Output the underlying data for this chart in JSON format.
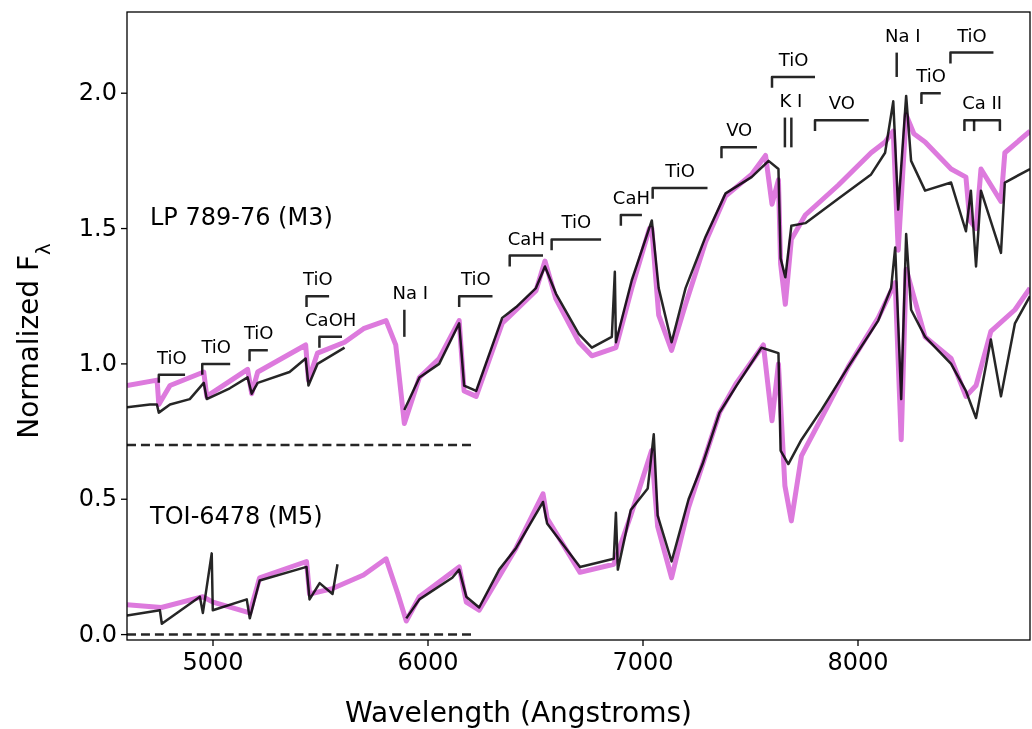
{
  "chart_data": {
    "type": "line",
    "xlabel": "Wavelength (Angstroms)",
    "ylabel": "Normalized F$_{λ}$",
    "xlim": [
      4600,
      8800
    ],
    "ylim": [
      -0.02,
      2.3
    ],
    "xticks": [
      5000,
      6000,
      7000,
      8000
    ],
    "yticks": [
      {
        "value": 0,
        "label": "0.0"
      },
      {
        "value": 0.5,
        "label": "0.5"
      },
      {
        "value": 1,
        "label": "1.0"
      },
      {
        "value": 1.5,
        "label": "1.5"
      },
      {
        "value": 2,
        "label": "2.0"
      }
    ],
    "grid": false,
    "series": [
      {
        "color": "#dd7add",
        "x": [
          4600,
          4740,
          4748,
          4800,
          4957,
          4971,
          5161,
          5180,
          5208,
          5431,
          5444,
          5486,
          5612,
          5700,
          5805,
          5850,
          5890,
          5960,
          6052,
          6145,
          6168,
          6224,
          6345,
          6502,
          6544,
          6595,
          6702,
          6762,
          6874,
          6948,
          7030,
          7041,
          7073,
          7133,
          7198,
          7291,
          7384,
          7505,
          7570,
          7600,
          7630,
          7640,
          7662,
          7690,
          7755,
          7908,
          8061,
          8126,
          8164,
          8187,
          8224,
          8260,
          8312,
          8433,
          8502,
          8520,
          8549,
          8572,
          8665,
          8683,
          8800
        ],
        "values": [
          0.92,
          0.94,
          0.85,
          0.92,
          0.97,
          0.88,
          0.98,
          0.89,
          0.97,
          1.07,
          0.94,
          1.04,
          1.08,
          1.13,
          1.16,
          1.07,
          0.78,
          0.95,
          1.02,
          1.16,
          0.9,
          0.88,
          1.15,
          1.27,
          1.38,
          1.24,
          1.08,
          1.03,
          1.06,
          1.28,
          1.5,
          1.5,
          1.18,
          1.05,
          1.22,
          1.45,
          1.62,
          1.7,
          1.77,
          1.59,
          1.68,
          1.37,
          1.22,
          1.46,
          1.55,
          1.66,
          1.78,
          1.82,
          1.86,
          1.42,
          1.92,
          1.85,
          1.82,
          1.72,
          1.69,
          1.53,
          1.5,
          1.72,
          1.6,
          1.78,
          1.86
        ]
      },
      {
        "color": "#000000",
        "x": [
          4600,
          4707,
          4739,
          4748,
          4800,
          4892,
          4957,
          4971,
          5078,
          5161,
          5180,
          5208,
          5356,
          5431,
          5444,
          5486,
          5612,
          5700,
          5890,
          5960,
          6052,
          6145,
          6168,
          6224,
          6345,
          6410,
          6502,
          6544,
          6595,
          6702,
          6762,
          6855,
          6869,
          6874,
          6948,
          7041,
          7073,
          7133,
          7198,
          7291,
          7384,
          7505,
          7584,
          7630,
          7640,
          7662,
          7690,
          7755,
          7908,
          8061,
          8126,
          8164,
          8187,
          8224,
          8247,
          8312,
          8433,
          8502,
          8525,
          8549,
          8572,
          8665,
          8683,
          8800
        ],
        "values": [
          0.84,
          0.85,
          0.85,
          0.82,
          0.85,
          0.87,
          0.93,
          0.87,
          0.91,
          0.95,
          0.89,
          0.93,
          0.97,
          1.02,
          0.92,
          1.0,
          1.06,
          null,
          0.83,
          0.95,
          1.0,
          1.15,
          0.92,
          0.9,
          1.17,
          1.21,
          1.28,
          1.36,
          1.26,
          1.11,
          1.06,
          1.1,
          1.34,
          1.08,
          1.31,
          1.53,
          1.28,
          1.08,
          1.28,
          1.47,
          1.63,
          1.69,
          1.75,
          1.72,
          1.39,
          1.32,
          1.51,
          1.52,
          1.61,
          1.7,
          1.78,
          1.97,
          1.57,
          1.99,
          1.75,
          1.64,
          1.67,
          1.49,
          1.64,
          1.36,
          1.64,
          1.41,
          1.67,
          1.72
        ]
      },
      {
        "color": "#dd7add",
        "x": [
          4600,
          4760,
          4953,
          5000,
          5171,
          5217,
          5435,
          5449,
          5556,
          5700,
          5805,
          5860,
          5899,
          5960,
          6145,
          6178,
          6238,
          6410,
          6535,
          6554,
          6707,
          6864,
          6943,
          7040,
          7068,
          7133,
          7212,
          7356,
          7435,
          7560,
          7600,
          7630,
          7660,
          7690,
          7737,
          7830,
          7955,
          8094,
          8173,
          8201,
          8224,
          8312,
          8433,
          8502,
          8549,
          8618,
          8730,
          8800
        ],
        "values": [
          0.11,
          0.1,
          0.14,
          0.12,
          0.08,
          0.21,
          0.27,
          0.15,
          0.17,
          0.22,
          0.28,
          0.15,
          0.05,
          0.14,
          0.25,
          0.12,
          0.09,
          0.32,
          0.52,
          0.43,
          0.23,
          0.26,
          0.44,
          0.68,
          0.4,
          0.21,
          0.47,
          0.82,
          0.93,
          1.07,
          0.79,
          1.0,
          0.55,
          0.42,
          0.66,
          0.8,
          0.99,
          1.17,
          1.3,
          0.72,
          1.35,
          1.1,
          1.02,
          0.88,
          0.92,
          1.12,
          1.2,
          1.28
        ]
      },
      {
        "color": "#000000",
        "x": [
          4600,
          4753,
          4762,
          4939,
          4953,
          4994,
          4999,
          5157,
          5171,
          5217,
          5435,
          5449,
          5496,
          5556,
          5579,
          5700,
          5899,
          5960,
          6113,
          6145,
          6178,
          6238,
          6331,
          6410,
          6535,
          6554,
          6707,
          6864,
          6874,
          6883,
          6943,
          7022,
          7050,
          7068,
          7133,
          7212,
          7277,
          7356,
          7435,
          7551,
          7630,
          7640,
          7676,
          7737,
          7830,
          7955,
          8094,
          8154,
          8173,
          8201,
          8224,
          8247,
          8312,
          8433,
          8502,
          8549,
          8618,
          8665,
          8730,
          8800
        ],
        "values": [
          0.07,
          0.09,
          0.04,
          0.14,
          0.08,
          0.3,
          0.09,
          0.13,
          0.06,
          0.2,
          0.25,
          0.13,
          0.19,
          0.15,
          0.26,
          null,
          0.06,
          0.13,
          0.21,
          0.24,
          0.14,
          0.1,
          0.24,
          0.32,
          0.49,
          0.41,
          0.25,
          0.28,
          0.45,
          0.24,
          0.46,
          0.54,
          0.74,
          0.44,
          0.27,
          0.5,
          0.63,
          0.82,
          0.92,
          1.06,
          1.04,
          0.68,
          0.63,
          0.72,
          0.83,
          0.99,
          1.16,
          1.28,
          1.43,
          0.87,
          1.48,
          1.2,
          1.1,
          1.0,
          0.9,
          0.8,
          1.09,
          0.88,
          1.15,
          1.25
        ]
      },
      {
        "color": "#000000",
        "line_style": "dashed",
        "x": [
          4600,
          6200
        ],
        "values": [
          0.7,
          0.7
        ]
      },
      {
        "color": "#000000",
        "line_style": "dashed",
        "x": [
          4600,
          6200
        ],
        "values": [
          0,
          0
        ]
      },
      {
        "color": "#000000",
        "x": [
          4748,
          4748,
          4870
        ],
        "values": [
          0.93,
          0.96,
          0.96
        ]
      },
      {
        "color": "#000000",
        "x": [
          4950,
          4950,
          5080
        ],
        "values": [
          0.96,
          1.0,
          1.0
        ]
      },
      {
        "color": "#000000",
        "x": [
          5170,
          5170,
          5255
        ],
        "values": [
          1.01,
          1.05,
          1.05
        ]
      },
      {
        "color": "#000000",
        "x": [
          5435,
          5435,
          5540
        ],
        "values": [
          1.21,
          1.25,
          1.25
        ]
      },
      {
        "color": "#000000",
        "x": [
          5495,
          5495,
          5600
        ],
        "values": [
          1.06,
          1.1,
          1.1
        ]
      },
      {
        "color": "#000000",
        "x": [
          5890,
          5890
        ],
        "values": [
          1.1,
          1.2
        ]
      },
      {
        "color": "#000000",
        "x": [
          6145,
          6145,
          6300
        ],
        "values": [
          1.21,
          1.25,
          1.25
        ]
      },
      {
        "color": "#000000",
        "x": [
          6380,
          6380,
          6535
        ],
        "values": [
          1.36,
          1.4,
          1.4
        ]
      },
      {
        "color": "#000000",
        "x": [
          6575,
          6575,
          6805
        ],
        "values": [
          1.42,
          1.46,
          1.46
        ]
      },
      {
        "color": "#000000",
        "x": [
          6897,
          6897,
          6995
        ],
        "values": [
          1.51,
          1.55,
          1.55
        ]
      },
      {
        "color": "#000000",
        "x": [
          7045,
          7045,
          7300
        ],
        "values": [
          1.61,
          1.65,
          1.65
        ]
      },
      {
        "color": "#000000",
        "x": [
          7365,
          7365,
          7530
        ],
        "values": [
          1.76,
          1.8,
          1.8
        ]
      },
      {
        "color": "#000000",
        "x": [
          7660,
          7660
        ],
        "values": [
          1.8,
          1.91
        ]
      },
      {
        "color": "#000000",
        "x": [
          7600,
          7600,
          7800
        ],
        "values": [
          2.02,
          2.06,
          2.06
        ]
      },
      {
        "color": "#000000",
        "x": [
          7800,
          7800,
          8050
        ],
        "values": [
          1.86,
          1.9,
          1.9
        ]
      },
      {
        "color": "#000000",
        "x": [
          8180,
          8180
        ],
        "values": [
          2.06,
          2.15
        ]
      },
      {
        "color": "#000000",
        "x": [
          8295,
          8295,
          8385
        ],
        "values": [
          1.96,
          2.0,
          2.0
        ]
      },
      {
        "color": "#000000",
        "x": [
          8430,
          8430,
          8630
        ],
        "values": [
          2.11,
          2.15,
          2.15
        ]
      },
      {
        "color": "#000000",
        "x": [
          8495,
          8495,
          8660,
          8660
        ],
        "values": [
          1.86,
          1.9,
          1.9,
          1.86
        ]
      },
      {
        "color": "#000000",
        "x": [
          7690,
          7690
        ],
        "values": [
          1.8,
          1.91
        ]
      },
      {
        "color": "#000000",
        "x": [
          8540,
          8540
        ],
        "values": [
          1.86,
          1.9
        ]
      }
    ],
    "annotations": [
      "LP 789-76 (M3)",
      "TOI-6478 (M5)",
      "TiO",
      "TiO",
      "TiO",
      "TiO",
      "CaOH",
      "Na I",
      "TiO",
      "CaH",
      "TiO",
      "CaH",
      "TiO",
      "VO",
      "K I",
      "TiO",
      "VO",
      "Na I",
      "TiO",
      "TiO",
      "Ca II"
    ]
  }
}
